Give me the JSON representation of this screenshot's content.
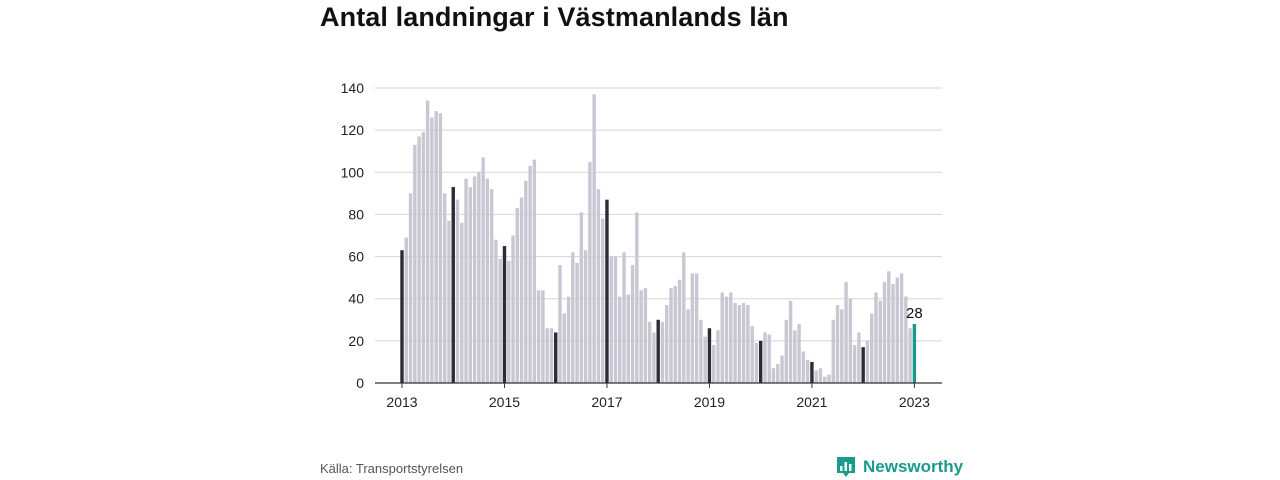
{
  "title": "Antal landningar i Västmanlands län",
  "source": "Källa: Transportstyrelsen",
  "brand": {
    "name": "Newsworthy",
    "icon": "bar-chart-badge-icon",
    "color": "#1a9a8c"
  },
  "colors": {
    "bar": "#c8c7d2",
    "january": "#2d2b36",
    "latest": "#1a9a8c",
    "grid": "#d5d5d5",
    "axis": "#333333"
  },
  "chart_data": {
    "type": "bar",
    "title": "Antal landningar i Västmanlands län",
    "xlabel": "",
    "ylabel": "",
    "ylim": [
      0,
      140
    ],
    "yticks": [
      0,
      20,
      40,
      60,
      80,
      100,
      120,
      140
    ],
    "xticks": [
      "2013",
      "2015",
      "2017",
      "2019",
      "2021",
      "2023"
    ],
    "grid": true,
    "legend": "none",
    "start": "2013-01",
    "frequency": "monthly",
    "highlight": "January bars dark; latest month highlighted",
    "latest_label": "28",
    "values": [
      63,
      69,
      90,
      113,
      117,
      119,
      134,
      126,
      129,
      128,
      90,
      77,
      93,
      87,
      76,
      97,
      93,
      98,
      100,
      107,
      97,
      92,
      68,
      59,
      65,
      58,
      70,
      83,
      88,
      96,
      103,
      106,
      44,
      44,
      26,
      26,
      24,
      56,
      33,
      41,
      62,
      57,
      81,
      63,
      105,
      137,
      92,
      78,
      87,
      60,
      60,
      41,
      62,
      42,
      56,
      81,
      44,
      45,
      29,
      24,
      30,
      29,
      37,
      45,
      46,
      49,
      62,
      35,
      52,
      52,
      30,
      22,
      26,
      18,
      25,
      43,
      41,
      43,
      38,
      37,
      38,
      37,
      27,
      19,
      20,
      24,
      23,
      7,
      9,
      13,
      30,
      39,
      25,
      28,
      15,
      11,
      10,
      6,
      7,
      3,
      4,
      30,
      37,
      35,
      48,
      40,
      18,
      24,
      17,
      20,
      33,
      43,
      39,
      48,
      53,
      47,
      50,
      52,
      41,
      26,
      28
    ]
  }
}
